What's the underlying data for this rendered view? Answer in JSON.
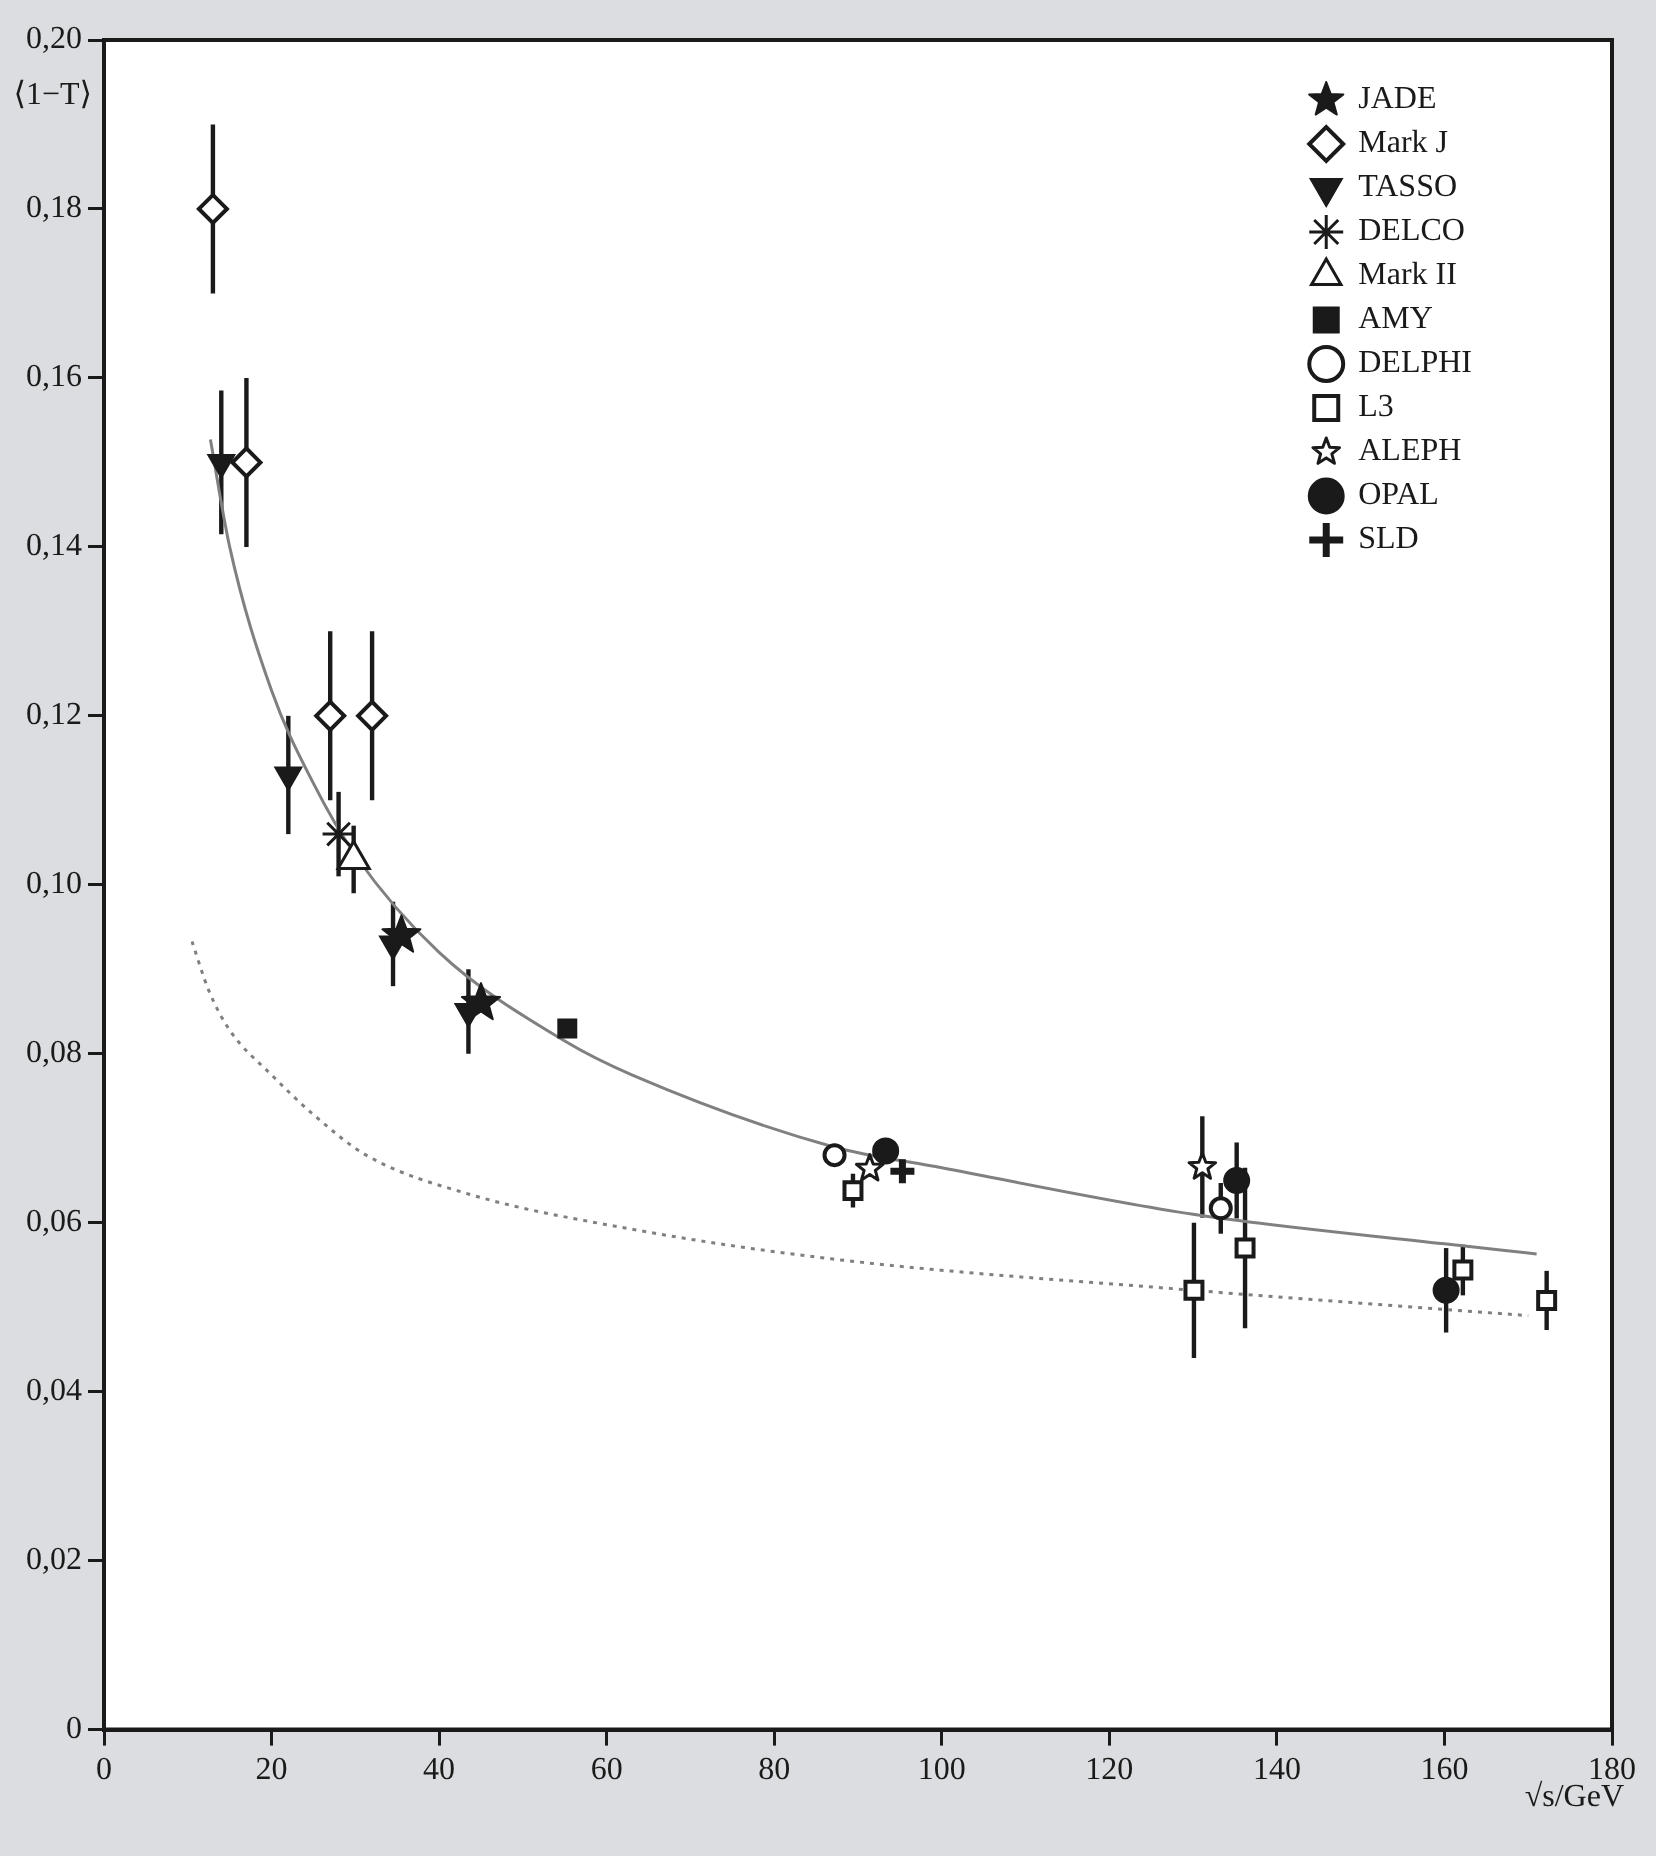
{
  "chart_data": {
    "type": "scatter",
    "xlabel": "√s/GeV",
    "ylabel": "⟨1−T⟩",
    "xlim": [
      0,
      180
    ],
    "xticks": [
      0,
      20,
      40,
      60,
      80,
      100,
      120,
      140,
      160,
      180
    ],
    "ylim": [
      0,
      0.2
    ],
    "yticks": [
      0,
      {
        "value": 0.02,
        "label": "0,02"
      },
      {
        "value": 0.04,
        "label": "0,04"
      },
      {
        "value": 0.06,
        "label": "0,06"
      },
      {
        "value": 0.08,
        "label": "0,08"
      },
      {
        "value": 0.1,
        "label": "0,10"
      },
      {
        "value": 0.12,
        "label": "0,12"
      },
      {
        "value": 0.14,
        "label": "0,14"
      },
      {
        "value": 0.16,
        "label": "0,16"
      },
      {
        "value": 0.18,
        "label": "0,18"
      },
      {
        "value": 0.2,
        "label": "0,20"
      }
    ],
    "grid": false,
    "legend": "top right",
    "series": [
      {
        "name": "JADE",
        "color": "#1a1a1a",
        "marker": "star",
        "x": [
          35.5,
          45
        ],
        "values": [
          0.094,
          0.086
        ],
        "errors": [
          null,
          null
        ]
      },
      {
        "name": "Mark J",
        "color": "#1a1a1a",
        "marker": "diamond-open",
        "x": [
          13,
          17,
          27,
          32
        ],
        "values": [
          0.18,
          0.15,
          0.12,
          0.12
        ],
        "errors": [
          0.01,
          0.01,
          0.01,
          0.01
        ]
      },
      {
        "name": "TASSO",
        "color": "#1a1a1a",
        "marker": "triangle-down",
        "x": [
          14,
          22,
          34.5,
          43.5
        ],
        "values": [
          0.15,
          0.113,
          0.093,
          0.085
        ],
        "errors": [
          0.0085,
          0.007,
          0.005,
          0.005
        ]
      },
      {
        "name": "DELCO",
        "color": "#1a1a1a",
        "marker": "cross",
        "x": [
          28
        ],
        "values": [
          0.106
        ],
        "errors": [
          0.005
        ]
      },
      {
        "name": "Mark II",
        "color": "#1a1a1a",
        "marker": "triangle-open",
        "x": [
          29.8
        ],
        "values": [
          0.103
        ],
        "errors": [
          0.004
        ]
      },
      {
        "name": "AMY",
        "color": "#1a1a1a",
        "marker": "square",
        "x": [
          55.3
        ],
        "values": [
          0.083
        ],
        "errors": [
          null
        ]
      },
      {
        "name": "DELPHI",
        "color": "#1a1a1a",
        "marker": "circle-open",
        "x": [
          87.2,
          133.3
        ],
        "values": [
          0.068,
          0.0617
        ],
        "errors": [
          null,
          0.003
        ]
      },
      {
        "name": "L3",
        "color": "#1a1a1a",
        "marker": "square-open",
        "x": [
          89.4,
          130.1,
          136.2,
          162.2,
          172.2
        ],
        "values": [
          0.0638,
          0.052,
          0.057,
          0.0544,
          0.0508
        ],
        "errors": [
          0.002,
          0.008,
          0.0095,
          0.003,
          0.0035
        ]
      },
      {
        "name": "ALEPH",
        "color": "#1a1a1a",
        "marker": "star-open",
        "x": [
          91.4,
          131.1
        ],
        "values": [
          0.0664,
          0.0666
        ],
        "errors": [
          null,
          0.006
        ]
      },
      {
        "name": "OPAL",
        "color": "#1a1a1a",
        "marker": "circle",
        "x": [
          93.3,
          135.2,
          160.2
        ],
        "values": [
          0.0685,
          0.065,
          0.052
        ],
        "errors": [
          null,
          0.0045,
          0.005
        ]
      },
      {
        "name": "SLD",
        "color": "#1a1a1a",
        "marker": "cross-open",
        "x": [
          95.3
        ],
        "values": [
          0.0661
        ],
        "errors": [
          null
        ]
      },
      {
        "type": "line",
        "color": "#808080",
        "line_style": "solid",
        "marker": "none",
        "x": [
          12.7,
          15,
          20,
          25,
          30,
          40,
          55,
          63,
          87,
          100,
          130,
          160,
          171
        ],
        "values": [
          0.1527,
          0.14,
          0.123,
          0.112,
          0.1035,
          0.092,
          0.0815,
          0.0775,
          0.069,
          0.0665,
          0.061,
          0.0575,
          0.0563
        ]
      },
      {
        "type": "line",
        "color": "#808080",
        "line_style": "dotted",
        "marker": "none",
        "x": [
          10.5,
          12.5,
          15,
          20,
          25,
          31.3,
          43.5,
          63.2,
          87,
          130,
          170
        ],
        "values": [
          0.0933,
          0.0875,
          0.0828,
          0.0775,
          0.0728,
          0.068,
          0.0634,
          0.0592,
          0.0557,
          0.052,
          0.049
        ]
      }
    ]
  }
}
